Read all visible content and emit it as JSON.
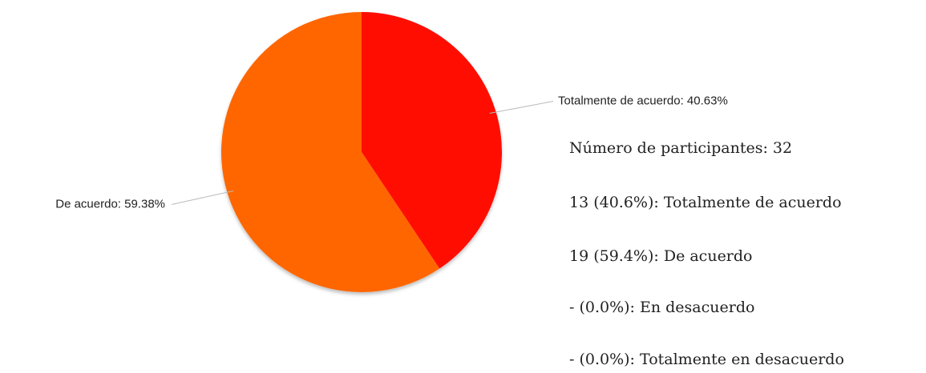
{
  "chart_data": {
    "type": "pie",
    "categories": [
      "Totalmente de acuerdo",
      "De acuerdo"
    ],
    "values": [
      40.63,
      59.38
    ],
    "value_labels": [
      "Totalmente de acuerdo: 40.63%",
      "De acuerdo: 59.38%"
    ],
    "colors": [
      "#ff1100",
      "#ff6600"
    ]
  },
  "summary": {
    "title": "Número de participantes: 32",
    "lines": [
      "13 (40.6%): Totalmente de acuerdo",
      "19 (59.4%): De acuerdo",
      "- (0.0%): En desacuerdo",
      "- (0.0%): Totalmente en desacuerdo"
    ]
  }
}
